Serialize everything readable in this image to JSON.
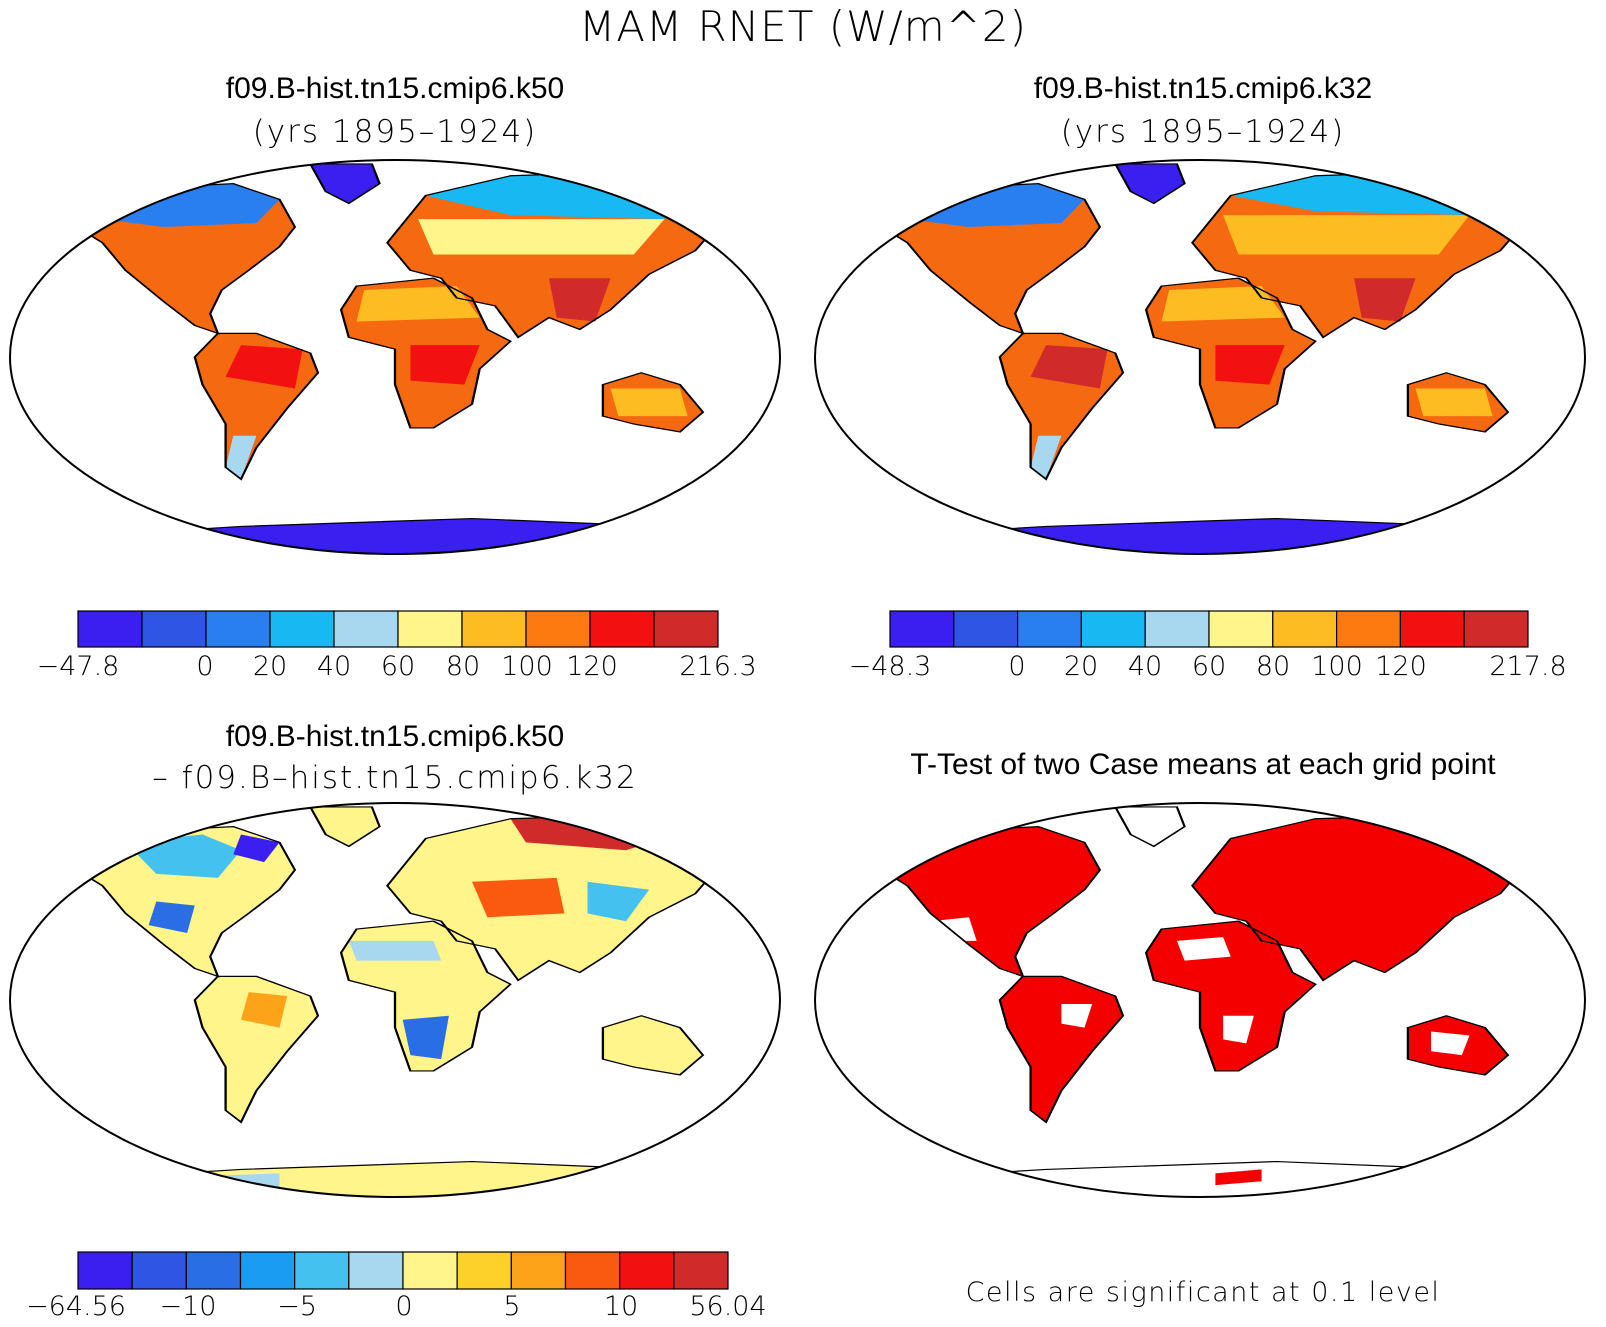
{
  "title": "MAM RNET (W/m^2)",
  "panels": [
    {
      "title": "f09.B-hist.tn15.cmip6.k50",
      "subtitle": "(yrs 1895–1924)"
    },
    {
      "title": "f09.B-hist.tn15.cmip6.k32",
      "subtitle": "(yrs 1895–1924)"
    },
    {
      "title": "f09.B-hist.tn15.cmip6.k50",
      "subtitle": "– f09.B–hist.tn15.cmip6.k32"
    },
    {
      "title": "T-Test of two Case means at each grid point",
      "subtitle": ""
    }
  ],
  "colorbars": [
    {
      "colors": [
        "#3a1ff0",
        "#2f55e4",
        "#2a7ff0",
        "#18b8f2",
        "#a7d8ef",
        "#fff58a",
        "#fdbd22",
        "#fc7a0f",
        "#f21010",
        "#d02a2a"
      ],
      "labels": [
        "−47.8",
        "0",
        "20",
        "40",
        "60",
        "80",
        "100",
        "120",
        "216.3"
      ]
    },
    {
      "colors": [
        "#3a1ff0",
        "#2f55e4",
        "#2a7ff0",
        "#18b8f2",
        "#a7d8ef",
        "#fff58a",
        "#fdbd22",
        "#fc7a0f",
        "#f21010",
        "#d02a2a"
      ],
      "labels": [
        "−48.3",
        "0",
        "20",
        "40",
        "60",
        "80",
        "100",
        "120",
        "217.8"
      ]
    },
    {
      "colors": [
        "#3a1ff0",
        "#2f55e4",
        "#2a6ee6",
        "#1a9cf2",
        "#44c1ef",
        "#a7d8ef",
        "#fff58a",
        "#fdd12a",
        "#fca31a",
        "#fa5a10",
        "#f21010",
        "#d02a2a"
      ],
      "labels": [
        "−64.56",
        "−10",
        "−5",
        "0",
        "5",
        "10",
        "56.04"
      ]
    }
  ],
  "significance_note": "Cells are significant at 0.1 level",
  "colors": {
    "significant": "#f50000",
    "outline": "#000000"
  }
}
